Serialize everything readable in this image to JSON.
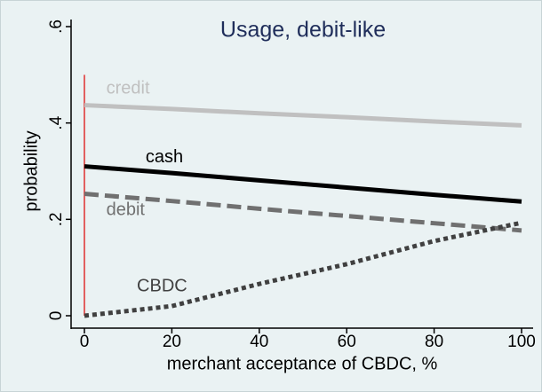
{
  "chart_data": {
    "type": "line",
    "title": "Usage, debit-like",
    "xlabel": "merchant acceptance of CBDC, %",
    "ylabel": "probability",
    "x": [
      0,
      20,
      40,
      60,
      80,
      100
    ],
    "series": [
      {
        "name": "credit",
        "color": "#c0c0c0",
        "dash": "solid",
        "values": [
          0.437,
          0.429,
          0.42,
          0.412,
          0.403,
          0.395
        ]
      },
      {
        "name": "cash",
        "color": "#000000",
        "dash": "solid",
        "values": [
          0.31,
          0.296,
          0.281,
          0.266,
          0.251,
          0.237
        ]
      },
      {
        "name": "debit",
        "color": "#707070",
        "dash": "dashed",
        "values": [
          0.253,
          0.238,
          0.222,
          0.207,
          0.192,
          0.177
        ]
      },
      {
        "name": "CBDC",
        "color": "#404040",
        "dash": "dotted",
        "values": [
          0,
          0.02,
          0.066,
          0.107,
          0.155,
          0.193
        ]
      }
    ],
    "xlim": [
      0,
      100
    ],
    "xticks": [
      0,
      20,
      40,
      60,
      80,
      100
    ],
    "ylim": [
      0,
      0.6
    ],
    "yticks": [
      0,
      {
        "value": 0.2,
        "label": ".2"
      },
      {
        "value": 0.4,
        "label": ".4"
      },
      {
        "value": 0.6,
        "label": ".6"
      }
    ],
    "vline": {
      "x": 0,
      "y_end": 0.5,
      "color": "#e03030"
    }
  }
}
